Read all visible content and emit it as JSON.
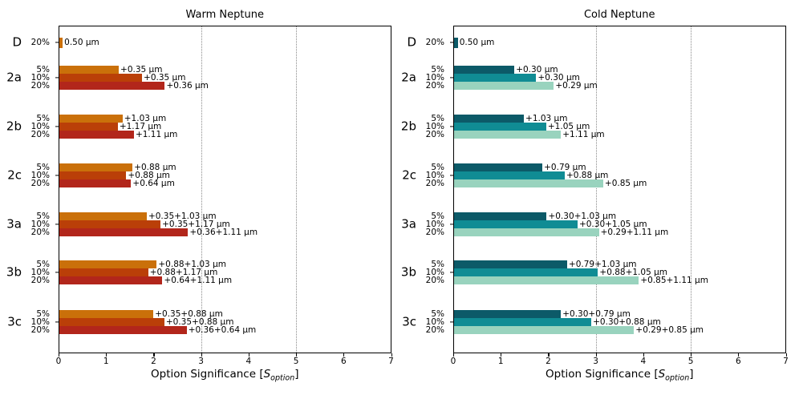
{
  "figure": {
    "background": "#ffffff",
    "text_color": "#000000",
    "grid_color": "#8a8a8a"
  },
  "xlabel_parts": {
    "prefix": "Option Significance [",
    "symbol": "S",
    "subscript": "option",
    "suffix": "]"
  },
  "chart_data": [
    {
      "type": "bar",
      "orientation": "horizontal",
      "title": "Warm Neptune",
      "xlabel": "Option Significance [S_option]",
      "xlim": [
        0,
        7
      ],
      "xticks": [
        0,
        1,
        2,
        3,
        4,
        5,
        6,
        7
      ],
      "threshold_gridlines": [
        3,
        5
      ],
      "grid_style": "dotted",
      "legend_position": "none",
      "series_labels": [
        "5%",
        "10%",
        "20%"
      ],
      "series_colors": [
        "#CA700A",
        "#BA3F08",
        "#B2261B"
      ],
      "groups": [
        {
          "label": "D",
          "bars": [
            {
              "series": "20%",
              "value": 0.07,
              "annotation": "0.50 μm",
              "color_index": 0
            }
          ]
        },
        {
          "label": "2a",
          "bars": [
            {
              "series": "5%",
              "value": 1.25,
              "annotation": "+0.35 μm",
              "color_index": 0
            },
            {
              "series": "10%",
              "value": 1.74,
              "annotation": "+0.35 μm",
              "color_index": 1
            },
            {
              "series": "20%",
              "value": 2.22,
              "annotation": "+0.36 μm",
              "color_index": 2
            }
          ]
        },
        {
          "label": "2b",
          "bars": [
            {
              "series": "5%",
              "value": 1.33,
              "annotation": "+1.03 μm",
              "color_index": 0
            },
            {
              "series": "10%",
              "value": 1.23,
              "annotation": "+1.17 μm",
              "color_index": 1
            },
            {
              "series": "20%",
              "value": 1.57,
              "annotation": "+1.11 μm",
              "color_index": 2
            }
          ]
        },
        {
          "label": "2c",
          "bars": [
            {
              "series": "5%",
              "value": 1.54,
              "annotation": "+0.88 μm",
              "color_index": 0
            },
            {
              "series": "10%",
              "value": 1.41,
              "annotation": "+0.88 μm",
              "color_index": 1
            },
            {
              "series": "20%",
              "value": 1.51,
              "annotation": "+0.64 μm",
              "color_index": 2
            }
          ]
        },
        {
          "label": "3a",
          "bars": [
            {
              "series": "5%",
              "value": 1.84,
              "annotation": "+0.35+1.03 μm",
              "color_index": 0
            },
            {
              "series": "10%",
              "value": 2.13,
              "annotation": "+0.35+1.17 μm",
              "color_index": 1
            },
            {
              "series": "20%",
              "value": 2.71,
              "annotation": "+0.36+1.11 μm",
              "color_index": 2
            }
          ]
        },
        {
          "label": "3b",
          "bars": [
            {
              "series": "5%",
              "value": 2.05,
              "annotation": "+0.88+1.03 μm",
              "color_index": 0
            },
            {
              "series": "10%",
              "value": 1.87,
              "annotation": "+0.88+1.17 μm",
              "color_index": 1
            },
            {
              "series": "20%",
              "value": 2.17,
              "annotation": "+0.64+1.11 μm",
              "color_index": 2
            }
          ]
        },
        {
          "label": "3c",
          "bars": [
            {
              "series": "5%",
              "value": 1.98,
              "annotation": "+0.35+0.88 μm",
              "color_index": 0
            },
            {
              "series": "10%",
              "value": 2.21,
              "annotation": "+0.35+0.88 μm",
              "color_index": 1
            },
            {
              "series": "20%",
              "value": 2.68,
              "annotation": "+0.36+0.64 μm",
              "color_index": 2
            }
          ]
        }
      ]
    },
    {
      "type": "bar",
      "orientation": "horizontal",
      "title": "Cold Neptune",
      "xlabel": "Option Significance [S_option]",
      "xlim": [
        0,
        7
      ],
      "xticks": [
        0,
        1,
        2,
        3,
        4,
        5,
        6,
        7
      ],
      "threshold_gridlines": [
        3,
        5
      ],
      "grid_style": "dotted",
      "legend_position": "none",
      "series_labels": [
        "5%",
        "10%",
        "20%"
      ],
      "series_colors": [
        "#0C5A68",
        "#108C94",
        "#99D3BE"
      ],
      "groups": [
        {
          "label": "D",
          "bars": [
            {
              "series": "20%",
              "value": 0.08,
              "annotation": "0.50 μm",
              "color_index": 0
            }
          ]
        },
        {
          "label": "2a",
          "bars": [
            {
              "series": "5%",
              "value": 1.27,
              "annotation": "+0.30 μm",
              "color_index": 0
            },
            {
              "series": "10%",
              "value": 1.73,
              "annotation": "+0.30 μm",
              "color_index": 1
            },
            {
              "series": "20%",
              "value": 2.1,
              "annotation": "+0.29 μm",
              "color_index": 2
            }
          ]
        },
        {
          "label": "2b",
          "bars": [
            {
              "series": "5%",
              "value": 1.47,
              "annotation": "+1.03 μm",
              "color_index": 0
            },
            {
              "series": "10%",
              "value": 1.94,
              "annotation": "+1.05 μm",
              "color_index": 1
            },
            {
              "series": "20%",
              "value": 2.25,
              "annotation": "+1.11 μm",
              "color_index": 2
            }
          ]
        },
        {
          "label": "2c",
          "bars": [
            {
              "series": "5%",
              "value": 1.86,
              "annotation": "+0.79 μm",
              "color_index": 0
            },
            {
              "series": "10%",
              "value": 2.33,
              "annotation": "+0.88 μm",
              "color_index": 1
            },
            {
              "series": "20%",
              "value": 3.14,
              "annotation": "+0.85 μm",
              "color_index": 2
            }
          ]
        },
        {
          "label": "3a",
          "bars": [
            {
              "series": "5%",
              "value": 1.95,
              "annotation": "+0.30+1.03 μm",
              "color_index": 0
            },
            {
              "series": "10%",
              "value": 2.6,
              "annotation": "+0.30+1.05 μm",
              "color_index": 1
            },
            {
              "series": "20%",
              "value": 3.05,
              "annotation": "+0.29+1.11 μm",
              "color_index": 2
            }
          ]
        },
        {
          "label": "3b",
          "bars": [
            {
              "series": "5%",
              "value": 2.38,
              "annotation": "+0.79+1.03 μm",
              "color_index": 0
            },
            {
              "series": "10%",
              "value": 3.03,
              "annotation": "+0.88+1.05 μm",
              "color_index": 1
            },
            {
              "series": "20%",
              "value": 3.89,
              "annotation": "+0.85+1.11 μm",
              "color_index": 2
            }
          ]
        },
        {
          "label": "3c",
          "bars": [
            {
              "series": "5%",
              "value": 2.25,
              "annotation": "+0.30+0.79 μm",
              "color_index": 0
            },
            {
              "series": "10%",
              "value": 2.89,
              "annotation": "+0.30+0.88 μm",
              "color_index": 1
            },
            {
              "series": "20%",
              "value": 3.79,
              "annotation": "+0.29+0.85 μm",
              "color_index": 2
            }
          ]
        }
      ]
    }
  ]
}
